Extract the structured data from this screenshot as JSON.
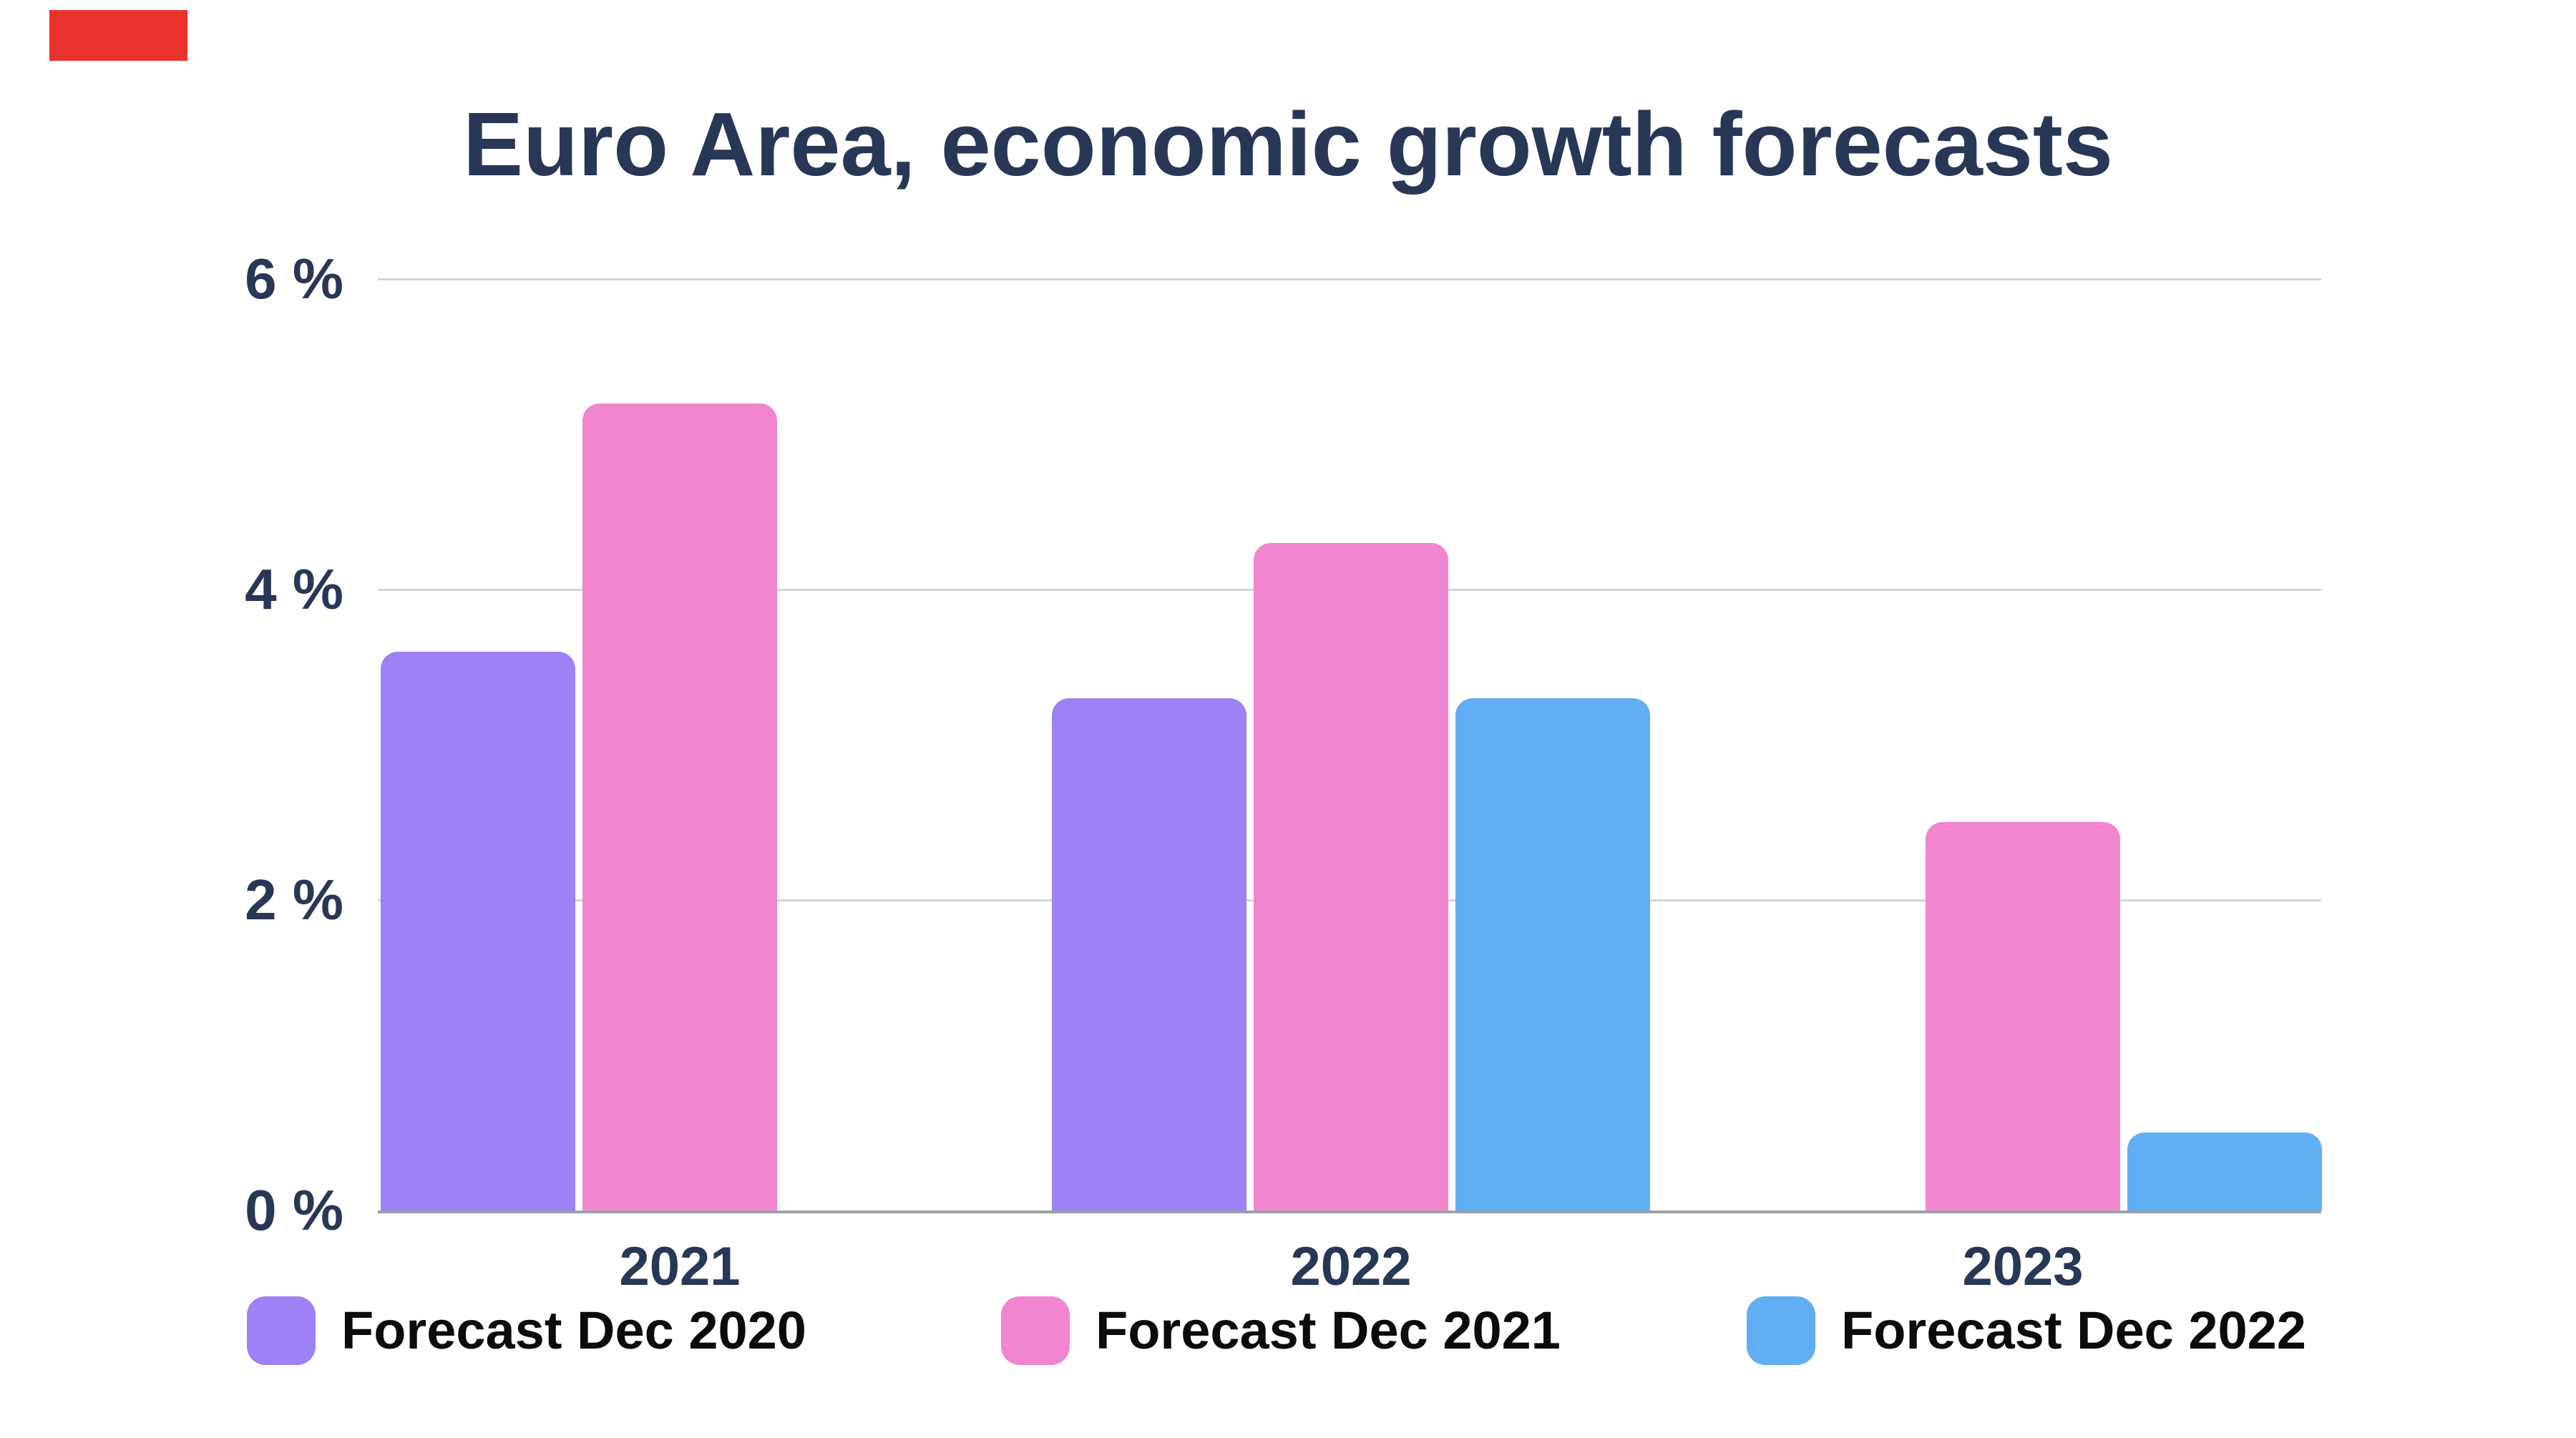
{
  "page": {
    "background_color": "#ffffff",
    "text_navy_color": "#293757",
    "legend_text_color": "#0b0b0b",
    "gridline_color": "#d2d6db",
    "axis_line_color": "#9aa1a8",
    "red_corner_mark_color": "#e8332c"
  },
  "title": {
    "text": "Euro Area, economic growth forecasts"
  },
  "chart_data": {
    "type": "bar",
    "title": "Euro Area, economic growth forecasts",
    "categories": [
      "2021",
      "2022",
      "2023"
    ],
    "series": [
      {
        "name": "Forecast Dec 2020",
        "color": "#9d81f5",
        "values": [
          3.6,
          3.3,
          null
        ]
      },
      {
        "name": "Forecast Dec 2021",
        "color": "#f285cf",
        "values": [
          5.2,
          4.3,
          2.5
        ]
      },
      {
        "name": "Forecast Dec 2022",
        "color": "#62aef5",
        "values": [
          null,
          3.3,
          0.5
        ]
      }
    ],
    "xlabel": "",
    "ylabel": "",
    "ylim": [
      0,
      6
    ],
    "yticks": [
      0,
      2,
      4,
      6
    ],
    "ytick_labels": [
      "0 %",
      "2 %",
      "4 %",
      "6 %"
    ],
    "ytick_suffix": " %",
    "grid": true,
    "legend_position": "bottom",
    "legend_labels": [
      "Forecast Dec 2020",
      "Forecast Dec 2021",
      "Forecast Dec 2022"
    ]
  }
}
